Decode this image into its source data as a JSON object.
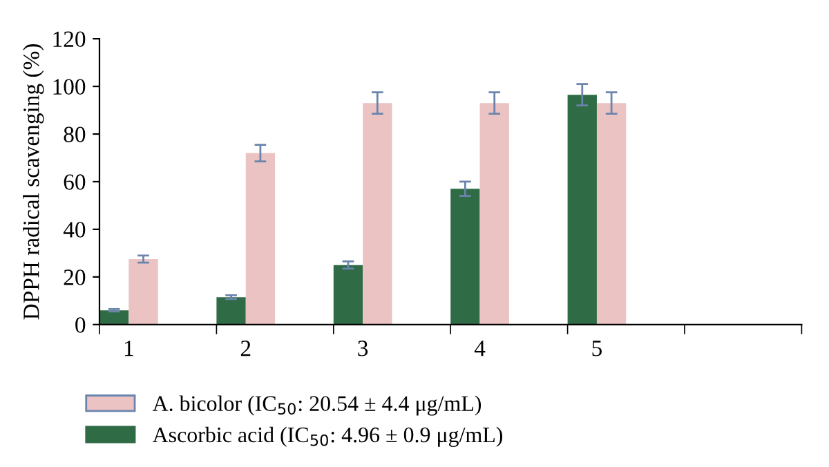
{
  "chart_data": {
    "type": "bar",
    "ylabel": "DPPH radical scavenging (%)",
    "categories": [
      "1",
      "2",
      "3",
      "4",
      "5",
      null
    ],
    "series": [
      {
        "name": "Ascorbic acid (IC$_{50}$: 4.96 ± 0.9 μg/mL)",
        "color": "#2f6b45",
        "values": [
          6,
          11.5,
          25,
          57,
          96.5,
          null
        ],
        "errors": [
          0.5,
          0.8,
          1.5,
          3,
          4.5,
          null
        ]
      },
      {
        "name": "A. bicolor (IC$_{50}$: 20.54 ± 4.4 μg/mL)",
        "color": "#ebc3c3",
        "values": [
          27.5,
          72,
          93,
          93,
          93,
          null
        ],
        "errors": [
          1.5,
          3.5,
          4.5,
          4.5,
          4.5,
          null
        ]
      }
    ],
    "ylim": [
      0,
      120
    ],
    "yticks": [
      0,
      20,
      40,
      60,
      80,
      100,
      120
    ],
    "grid": false,
    "legend": "bottom left"
  }
}
